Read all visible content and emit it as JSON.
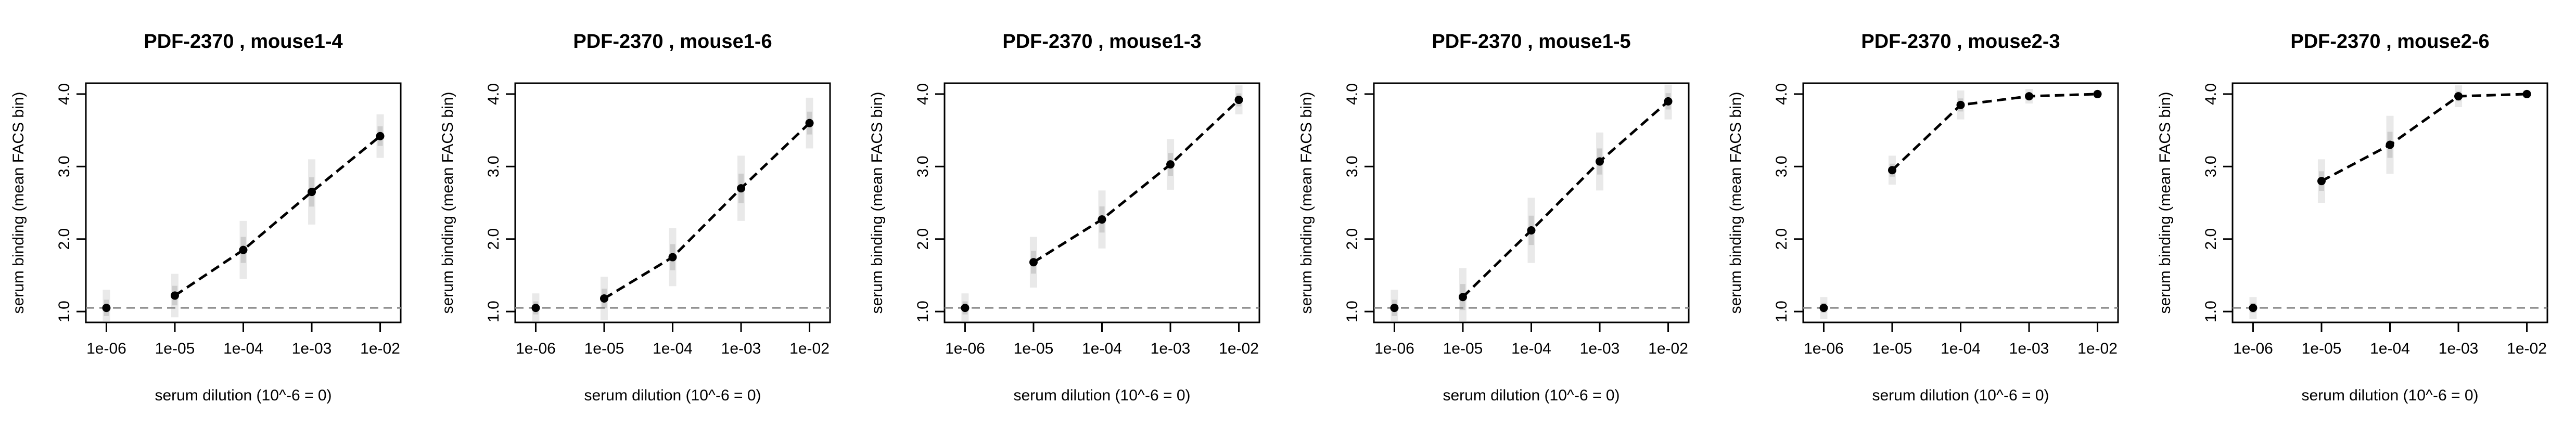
{
  "chart_data": [
    {
      "type": "line",
      "title": "PDF-2370 , mouse1-4",
      "xlabel": "serum dilution (10^-6 = 0)",
      "ylabel": "serum binding (mean FACS bin)",
      "x_tick_labels": [
        "1e-06",
        "1e-05",
        "1e-04",
        "1e-03",
        "1e-02"
      ],
      "y_tick_labels": [
        "1.0",
        "2.0",
        "3.0",
        "4.0"
      ],
      "x": [
        -6,
        -5,
        -4,
        -3,
        -2
      ],
      "y": [
        1.05,
        1.22,
        1.85,
        2.65,
        3.42
      ],
      "y_spread": [
        0.25,
        0.3,
        0.4,
        0.45,
        0.3
      ],
      "baseline": 1.05,
      "xlim": [
        -6.3,
        -1.7
      ],
      "ylim": [
        0.85,
        4.15
      ],
      "grid": false,
      "line_style": "dashed",
      "colors": {
        "line": "#000000",
        "point": "#000000",
        "baseline": "#888888",
        "spread": "#9a9a9a"
      }
    },
    {
      "type": "line",
      "title": "PDF-2370 , mouse1-6",
      "xlabel": "serum dilution (10^-6 = 0)",
      "ylabel": "serum binding (mean FACS bin)",
      "x_tick_labels": [
        "1e-06",
        "1e-05",
        "1e-04",
        "1e-03",
        "1e-02"
      ],
      "y_tick_labels": [
        "1.0",
        "2.0",
        "3.0",
        "4.0"
      ],
      "x": [
        -6,
        -5,
        -4,
        -3,
        -2
      ],
      "y": [
        1.05,
        1.18,
        1.75,
        2.7,
        3.6
      ],
      "y_spread": [
        0.2,
        0.3,
        0.4,
        0.45,
        0.35
      ],
      "baseline": 1.05,
      "xlim": [
        -6.3,
        -1.7
      ],
      "ylim": [
        0.85,
        4.15
      ],
      "grid": false,
      "line_style": "dashed",
      "colors": {
        "line": "#000000",
        "point": "#000000",
        "baseline": "#888888",
        "spread": "#9a9a9a"
      }
    },
    {
      "type": "line",
      "title": "PDF-2370 , mouse1-3",
      "xlabel": "serum dilution (10^-6 = 0)",
      "ylabel": "serum binding (mean FACS bin)",
      "x_tick_labels": [
        "1e-06",
        "1e-05",
        "1e-04",
        "1e-03",
        "1e-02"
      ],
      "y_tick_labels": [
        "1.0",
        "2.0",
        "3.0",
        "4.0"
      ],
      "x": [
        -6,
        -5,
        -4,
        -3,
        -2
      ],
      "y": [
        1.05,
        1.68,
        2.27,
        3.03,
        3.92
      ],
      "y_spread": [
        0.2,
        0.35,
        0.4,
        0.35,
        0.2
      ],
      "baseline": 1.05,
      "xlim": [
        -6.3,
        -1.7
      ],
      "ylim": [
        0.85,
        4.15
      ],
      "grid": false,
      "line_style": "dashed",
      "colors": {
        "line": "#000000",
        "point": "#000000",
        "baseline": "#888888",
        "spread": "#9a9a9a"
      }
    },
    {
      "type": "line",
      "title": "PDF-2370 , mouse1-5",
      "xlabel": "serum dilution (10^-6 = 0)",
      "ylabel": "serum binding (mean FACS bin)",
      "x_tick_labels": [
        "1e-06",
        "1e-05",
        "1e-04",
        "1e-03",
        "1e-02"
      ],
      "y_tick_labels": [
        "1.0",
        "2.0",
        "3.0",
        "4.0"
      ],
      "x": [
        -6,
        -5,
        -4,
        -3,
        -2
      ],
      "y": [
        1.05,
        1.2,
        2.12,
        3.07,
        3.9
      ],
      "y_spread": [
        0.25,
        0.4,
        0.45,
        0.4,
        0.25
      ],
      "baseline": 1.05,
      "xlim": [
        -6.3,
        -1.7
      ],
      "ylim": [
        0.85,
        4.15
      ],
      "grid": false,
      "line_style": "dashed",
      "colors": {
        "line": "#000000",
        "point": "#000000",
        "baseline": "#888888",
        "spread": "#9a9a9a"
      }
    },
    {
      "type": "line",
      "title": "PDF-2370 , mouse2-3",
      "xlabel": "serum dilution (10^-6 = 0)",
      "ylabel": "serum binding (mean FACS bin)",
      "x_tick_labels": [
        "1e-06",
        "1e-05",
        "1e-04",
        "1e-03",
        "1e-02"
      ],
      "y_tick_labels": [
        "1.0",
        "2.0",
        "3.0",
        "4.0"
      ],
      "x": [
        -6,
        -5,
        -4,
        -3,
        -2
      ],
      "y": [
        1.05,
        2.95,
        3.85,
        3.97,
        4.0
      ],
      "y_spread": [
        0.15,
        0.2,
        0.2,
        0.1,
        0.05
      ],
      "baseline": 1.05,
      "xlim": [
        -6.3,
        -1.7
      ],
      "ylim": [
        0.85,
        4.15
      ],
      "grid": false,
      "line_style": "dashed",
      "colors": {
        "line": "#000000",
        "point": "#000000",
        "baseline": "#888888",
        "spread": "#9a9a9a"
      }
    },
    {
      "type": "line",
      "title": "PDF-2370 , mouse2-6",
      "xlabel": "serum dilution (10^-6 = 0)",
      "ylabel": "serum binding (mean FACS bin)",
      "x_tick_labels": [
        "1e-06",
        "1e-05",
        "1e-04",
        "1e-03",
        "1e-02"
      ],
      "y_tick_labels": [
        "1.0",
        "2.0",
        "3.0",
        "4.0"
      ],
      "x": [
        -6,
        -5,
        -4,
        -3,
        -2
      ],
      "y": [
        1.05,
        2.8,
        3.3,
        3.97,
        4.0
      ],
      "y_spread": [
        0.15,
        0.3,
        0.4,
        0.15,
        0.05
      ],
      "baseline": 1.05,
      "xlim": [
        -6.3,
        -1.7
      ],
      "ylim": [
        0.85,
        4.15
      ],
      "grid": false,
      "line_style": "dashed",
      "colors": {
        "line": "#000000",
        "point": "#000000",
        "baseline": "#888888",
        "spread": "#9a9a9a"
      }
    }
  ]
}
